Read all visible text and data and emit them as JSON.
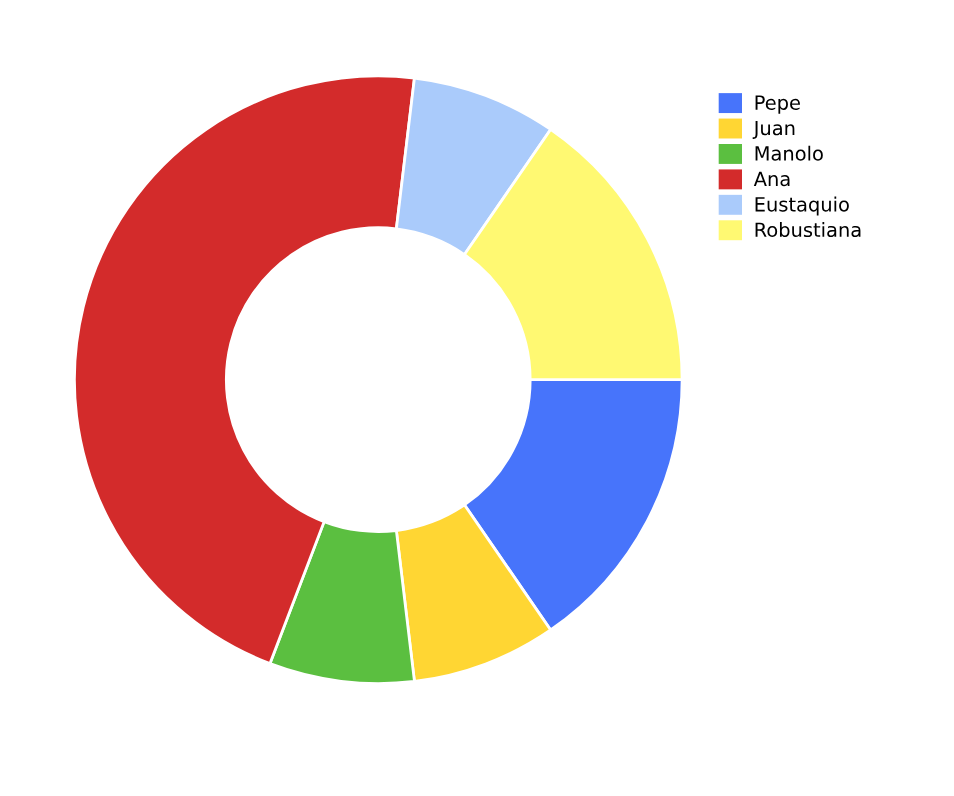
{
  "chart_data": {
    "type": "donut",
    "categories": [
      "Pepe",
      "Juan",
      "Manolo",
      "Ana",
      "Eustaquio",
      "Robustiana"
    ],
    "values": [
      15.4,
      7.7,
      7.7,
      46.1,
      7.7,
      15.4
    ],
    "colors": [
      "#4774fb",
      "#ffd633",
      "#5bbf40",
      "#d32b2b",
      "#aacbfb",
      "#fff972"
    ],
    "legend": "top right"
  }
}
